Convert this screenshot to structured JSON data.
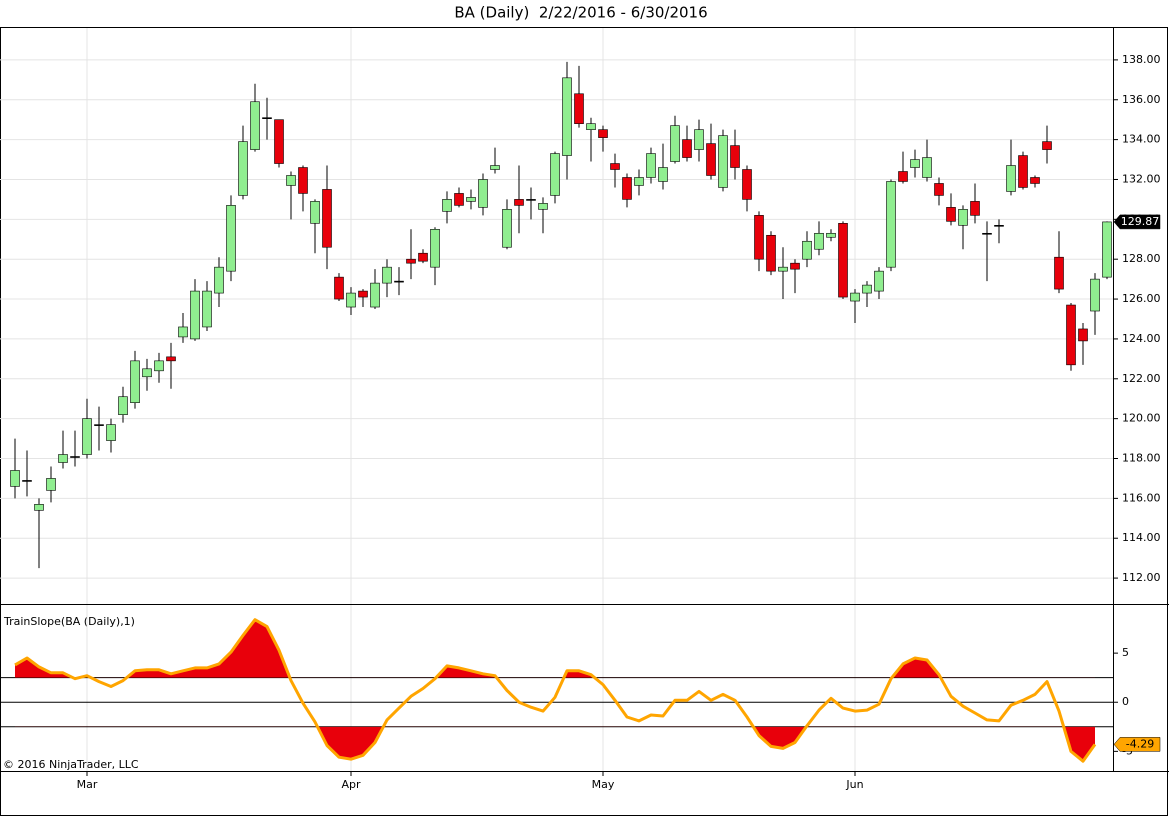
{
  "chart_data": [
    {
      "type": "candlestick",
      "title": "BA (Daily)  2/22/2016 - 6/30/2016",
      "footer": "© 2016 NinjaTrader, LLC",
      "categories": [
        null,
        null,
        null,
        null,
        null,
        null,
        "Mar",
        null,
        null,
        null,
        null,
        null,
        null,
        null,
        null,
        null,
        null,
        null,
        null,
        null,
        null,
        null,
        null,
        null,
        null,
        null,
        null,
        null,
        "Apr",
        null,
        null,
        null,
        null,
        null,
        null,
        null,
        null,
        null,
        null,
        null,
        null,
        null,
        null,
        null,
        null,
        null,
        null,
        null,
        null,
        "May",
        null,
        null,
        null,
        null,
        null,
        null,
        null,
        null,
        null,
        null,
        null,
        null,
        null,
        null,
        null,
        null,
        null,
        null,
        null,
        null,
        "Jun",
        null,
        null,
        null,
        null,
        null,
        null,
        null,
        null,
        null,
        null,
        null,
        null,
        null,
        null,
        null,
        null,
        null,
        null,
        null,
        null,
        null
      ],
      "open": [
        116.6,
        116.9,
        115.4,
        116.4,
        117.8,
        118.1,
        118.2,
        119.7,
        118.9,
        120.2,
        120.8,
        122.1,
        122.4,
        123.1,
        124.1,
        124.0,
        124.6,
        126.3,
        127.4,
        131.2,
        133.5,
        135.1,
        135.0,
        131.7,
        132.6,
        129.8,
        131.5,
        127.1,
        125.6,
        126.4,
        125.6,
        126.8,
        126.9,
        128.0,
        128.3,
        127.6,
        130.4,
        131.3,
        130.9,
        130.6,
        132.5,
        128.6,
        131.0,
        131.0,
        130.5,
        131.2,
        133.2,
        136.3,
        134.5,
        134.5,
        132.8,
        132.1,
        131.7,
        132.1,
        131.9,
        132.9,
        134.0,
        133.5,
        133.8,
        131.6,
        133.7,
        132.5,
        130.2,
        129.2,
        127.4,
        127.8,
        128.0,
        128.5,
        129.1,
        129.8,
        125.9,
        126.3,
        126.4,
        127.6,
        132.4,
        132.6,
        132.1,
        131.8,
        130.6,
        129.7,
        130.9,
        129.3,
        129.7,
        131.4,
        133.2,
        132.1,
        133.9,
        128.1,
        125.7,
        124.5,
        125.4,
        127.1
      ],
      "high": [
        119.0,
        118.4,
        116.0,
        117.6,
        119.4,
        119.4,
        121.0,
        120.6,
        120.0,
        121.6,
        123.4,
        123.0,
        123.3,
        123.8,
        125.3,
        127.0,
        126.9,
        128.1,
        131.2,
        134.7,
        136.8,
        136.1,
        135.0,
        132.4,
        132.7,
        131.0,
        132.7,
        127.3,
        126.6,
        126.5,
        127.5,
        128.0,
        127.6,
        129.5,
        128.5,
        129.6,
        131.4,
        131.6,
        131.5,
        132.3,
        133.6,
        131.0,
        132.7,
        131.6,
        131.1,
        133.4,
        137.9,
        137.7,
        135.1,
        134.7,
        133.3,
        132.3,
        132.5,
        133.6,
        133.8,
        135.2,
        134.7,
        135.0,
        134.8,
        134.5,
        134.5,
        132.7,
        130.4,
        129.4,
        128.6,
        128.0,
        129.4,
        129.9,
        129.5,
        129.9,
        126.5,
        126.9,
        127.6,
        132.0,
        133.4,
        133.5,
        134.0,
        132.1,
        131.3,
        130.7,
        131.8,
        129.9,
        130.0,
        134.0,
        133.4,
        132.2,
        134.7,
        129.4,
        125.8,
        124.8,
        127.3,
        129.9
      ],
      "low": [
        116.0,
        116.1,
        112.5,
        115.8,
        117.5,
        117.6,
        118.0,
        118.4,
        118.3,
        119.8,
        120.5,
        121.4,
        121.8,
        121.5,
        123.8,
        123.9,
        124.4,
        125.6,
        126.9,
        131.0,
        133.4,
        134.0,
        132.6,
        130.0,
        130.4,
        128.3,
        127.5,
        125.9,
        125.2,
        125.6,
        125.5,
        126.1,
        126.2,
        127.0,
        127.8,
        126.7,
        129.8,
        130.6,
        130.5,
        130.2,
        132.3,
        128.5,
        129.3,
        130.0,
        129.3,
        130.8,
        132.0,
        134.6,
        132.9,
        133.4,
        131.6,
        130.6,
        131.2,
        131.8,
        131.5,
        132.8,
        132.9,
        132.9,
        132.0,
        131.4,
        132.0,
        130.4,
        127.4,
        127.2,
        126.0,
        126.3,
        127.6,
        128.2,
        128.9,
        126.0,
        124.8,
        125.6,
        126.0,
        127.4,
        131.8,
        132.1,
        131.9,
        130.7,
        129.7,
        128.5,
        129.8,
        126.9,
        128.8,
        131.2,
        131.5,
        131.6,
        132.8,
        126.3,
        122.4,
        122.7,
        124.2,
        127.0
      ],
      "close": [
        117.4,
        116.9,
        115.7,
        117.0,
        118.2,
        118.1,
        120.0,
        119.7,
        119.7,
        121.1,
        122.9,
        122.5,
        122.9,
        122.9,
        124.6,
        126.4,
        126.4,
        127.6,
        130.7,
        133.9,
        135.9,
        135.1,
        132.8,
        132.2,
        131.3,
        130.9,
        128.6,
        126.0,
        126.3,
        126.1,
        126.8,
        127.6,
        126.9,
        127.8,
        127.9,
        129.5,
        131.0,
        130.7,
        131.1,
        132.0,
        132.7,
        130.5,
        130.7,
        131.0,
        130.8,
        133.3,
        137.1,
        134.8,
        134.8,
        134.1,
        132.5,
        131.0,
        132.1,
        133.3,
        132.6,
        134.7,
        133.1,
        134.5,
        132.2,
        134.2,
        132.6,
        131.0,
        128.0,
        127.4,
        127.6,
        127.5,
        128.9,
        129.3,
        129.3,
        126.1,
        126.3,
        126.7,
        127.4,
        131.9,
        131.9,
        133.0,
        133.1,
        131.2,
        129.9,
        130.5,
        130.2,
        129.3,
        129.7,
        132.7,
        131.6,
        131.8,
        133.5,
        126.5,
        122.7,
        123.9,
        127.0,
        129.87
      ],
      "up_color": "#90ee90",
      "down_color": "#e8000b",
      "last_label": "129.87",
      "ylim": [
        110.7,
        139.6
      ],
      "yticks": [
        {
          "value": 112,
          "label": "112.00"
        },
        {
          "value": 114,
          "label": "114.00"
        },
        {
          "value": 116,
          "label": "116.00"
        },
        {
          "value": 118,
          "label": "118.00"
        },
        {
          "value": 120,
          "label": "120.00"
        },
        {
          "value": 122,
          "label": "122.00"
        },
        {
          "value": 124,
          "label": "124.00"
        },
        {
          "value": 126,
          "label": "126.00"
        },
        {
          "value": 128,
          "label": "128.00"
        },
        {
          "value": 130,
          "label": "130.00"
        },
        {
          "value": 132,
          "label": "132.00"
        },
        {
          "value": 134,
          "label": "134.00"
        },
        {
          "value": 136,
          "label": "136.00"
        },
        {
          "value": 138,
          "label": "138.00"
        }
      ],
      "grid": true
    },
    {
      "type": "line",
      "title": "TrainSlope(BA (Daily),1)",
      "color": "#ffa500",
      "fill_color": "#e8000b",
      "last_label": "-4.29",
      "values": [
        3.8,
        4.5,
        3.6,
        3.0,
        3.0,
        2.4,
        2.7,
        2.1,
        1.6,
        2.2,
        3.2,
        3.3,
        3.3,
        2.9,
        3.2,
        3.5,
        3.5,
        3.9,
        5.1,
        6.8,
        8.4,
        7.7,
        5.3,
        2.2,
        -0.1,
        -2.0,
        -4.4,
        -5.6,
        -5.8,
        -5.4,
        -4.1,
        -1.8,
        -0.6,
        0.6,
        1.4,
        2.4,
        3.7,
        3.5,
        3.2,
        2.9,
        2.7,
        1.2,
        0,
        -0.5,
        -0.9,
        0.5,
        3.2,
        3.2,
        2.8,
        1.8,
        0.2,
        -1.5,
        -1.9,
        -1.3,
        -1.4,
        0.2,
        0.2,
        1.1,
        0.2,
        0.8,
        0.2,
        -1.5,
        -3.4,
        -4.5,
        -4.7,
        -4.1,
        -2.4,
        -0.8,
        0.4,
        -0.6,
        -0.9,
        -0.8,
        -0.2,
        2.4,
        3.9,
        4.5,
        4.3,
        2.8,
        0.6,
        -0.4,
        -1.1,
        -1.8,
        -1.9,
        -0.3,
        0.2,
        0.8,
        2.1,
        -0.9,
        -5.0,
        -6.0,
        -4.29,
        null
      ],
      "reference_lines": [
        2.5,
        0,
        -2.5
      ],
      "ylim": [
        -7.0,
        9.9
      ],
      "yticks": [
        -5,
        0,
        5
      ]
    }
  ]
}
